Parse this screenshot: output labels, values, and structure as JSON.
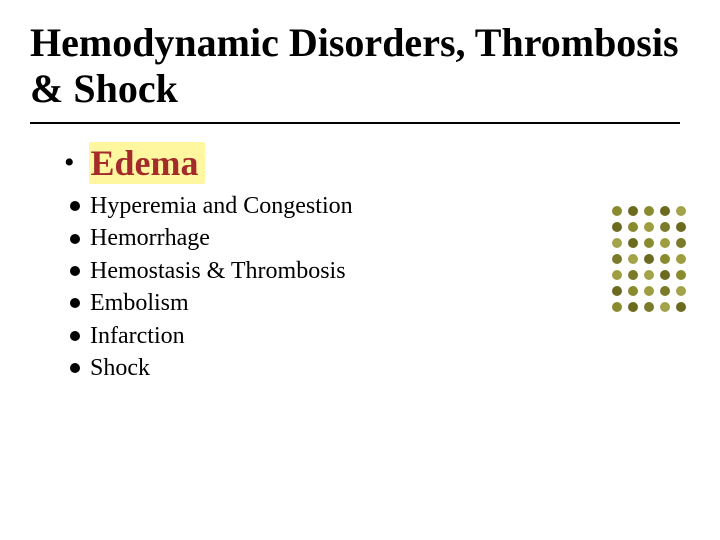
{
  "title": "Hemodynamic  Disorders, Thrombosis  & Shock",
  "highlight": {
    "bullet": "•",
    "text": "Edema",
    "text_color": "#a52a2a",
    "bg_color": "#fff7a0",
    "fontsize": 36
  },
  "list_items": [
    "Hyperemia and Congestion",
    "Hemorrhage",
    "Hemostasis & Thrombosis",
    "Embolism",
    "Infarction",
    "Shock"
  ],
  "list_fontsize": 24,
  "title_fontsize": 40,
  "deco": {
    "rows": 7,
    "cols": 5,
    "dot_size": 10,
    "gap": 6,
    "colors": [
      [
        "#8a8a2e",
        "#6b6b1f",
        "#8a8a2e",
        "#6b6b1f",
        "#a3a34a"
      ],
      [
        "#6b6b1f",
        "#8a8a2e",
        "#9e9e3f",
        "#7a7a28",
        "#6b6b1f"
      ],
      [
        "#a3a34a",
        "#6b6b1f",
        "#8a8a2e",
        "#9e9e3f",
        "#7a7a28"
      ],
      [
        "#7a7a28",
        "#a3a34a",
        "#6b6b1f",
        "#8a8a2e",
        "#9e9e3f"
      ],
      [
        "#9e9e3f",
        "#7a7a28",
        "#a3a34a",
        "#6b6b1f",
        "#8a8a2e"
      ],
      [
        "#6b6b1f",
        "#8a8a2e",
        "#9e9e3f",
        "#7a7a28",
        "#a3a34a"
      ],
      [
        "#8a8a2e",
        "#6b6b1f",
        "#7a7a28",
        "#a3a34a",
        "#6b6b1f"
      ]
    ]
  },
  "colors": {
    "background": "#ffffff",
    "text": "#000000",
    "divider": "#000000"
  }
}
